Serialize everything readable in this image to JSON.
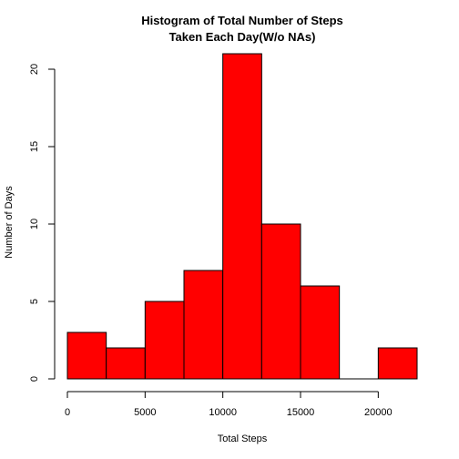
{
  "chart_data": {
    "type": "bar",
    "title_lines": [
      "Histogram of Total Number of Steps",
      "Taken Each Day(W/o NAs)"
    ],
    "xlabel": "Total Steps",
    "ylabel": "Number of Days",
    "bins": [
      {
        "x0": 0,
        "x1": 2500,
        "count": 3
      },
      {
        "x0": 2500,
        "x1": 5000,
        "count": 2
      },
      {
        "x0": 5000,
        "x1": 7500,
        "count": 5
      },
      {
        "x0": 7500,
        "x1": 10000,
        "count": 7
      },
      {
        "x0": 10000,
        "x1": 12500,
        "count": 21
      },
      {
        "x0": 12500,
        "x1": 15000,
        "count": 10
      },
      {
        "x0": 15000,
        "x1": 17500,
        "count": 6
      },
      {
        "x0": 17500,
        "x1": 20000,
        "count": 0
      },
      {
        "x0": 20000,
        "x1": 22500,
        "count": 2
      }
    ],
    "x_ticks": [
      0,
      5000,
      10000,
      15000,
      20000
    ],
    "y_ticks": [
      0,
      5,
      10,
      15,
      20
    ],
    "xlim": [
      0,
      22500
    ],
    "ylim": [
      0,
      21
    ],
    "bar_color": "#ff0000",
    "border_color": "#000000",
    "grid": false
  }
}
